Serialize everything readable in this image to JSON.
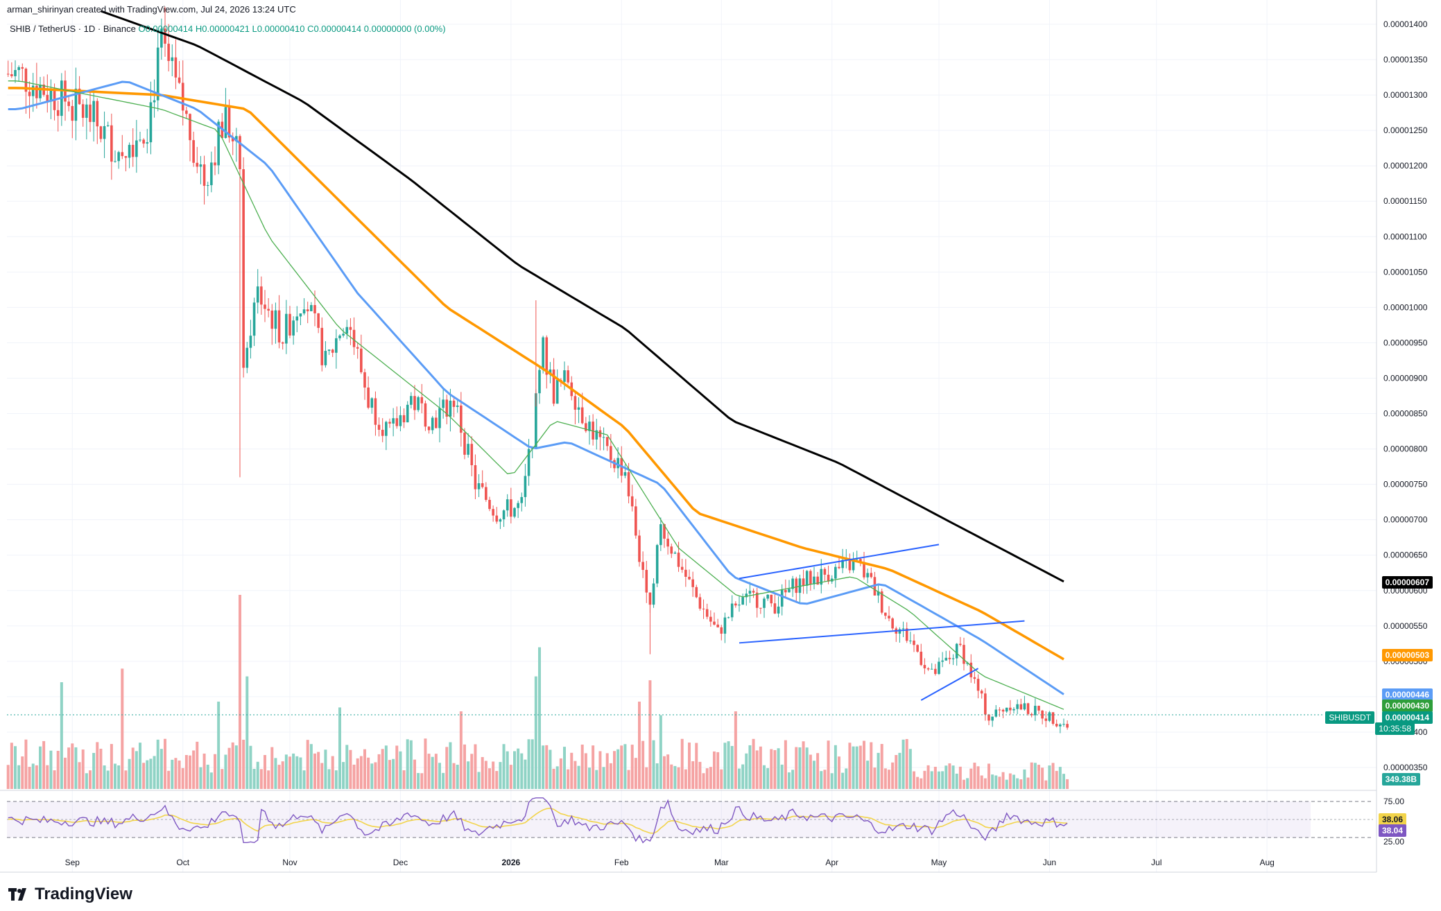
{
  "header": {
    "created_by": "arman_shirinyan created with TradingView.com, Jul 24, 2026 13:24 UTC",
    "symbol_line": "SHIB / TetherUS · 1D · Binance",
    "ohlc": "O0.00000414 H0.00000421 L0.00000410 C0.00000414 0.00000000 (0.00%)"
  },
  "brand": {
    "name": "TradingView",
    "icon": "tradingview-logo-icon"
  },
  "colors": {
    "up": "#26a69a",
    "down": "#ef5350",
    "vol_up": "#8fd3c5",
    "vol_down": "#f5a3a3",
    "ma200": "#000000",
    "ma100": "#ff9800",
    "ma50": "#5b9cf6",
    "ma20": "#4caf50",
    "rsi": "#7e57c2",
    "rsi_ma": "#f2d44a",
    "trend": "#2962ff"
  },
  "labels": {
    "ma200": "0.00000607",
    "ma100": "0.00000503",
    "ma50": "0.00000446",
    "ma20": "0.00000430",
    "symbol": "SHIBUSDT",
    "price": "0.00000414",
    "countdown": "10:35:58",
    "volume": "349.38B",
    "rsi": "38.04",
    "rsi_ma": "38.06",
    "rsi_upper": "75.00",
    "rsi_lower": "25.00"
  },
  "chart_data": {
    "type": "candlestick",
    "interval": "1D",
    "exchange": "Binance",
    "x_labels": [
      "Sep",
      "Oct",
      "Nov",
      "Dec",
      "2026",
      "Feb",
      "Mar",
      "Apr",
      "May",
      "Jun",
      "Jul",
      "Aug"
    ],
    "y_ticks": [
      "0.00001400",
      "0.00001350",
      "0.00001300",
      "0.00001250",
      "0.00001200",
      "0.00001150",
      "0.00001100",
      "0.00001050",
      "0.00001000",
      "0.00000950",
      "0.00000900",
      "0.00000850",
      "0.00000800",
      "0.00000750",
      "0.00000700",
      "0.00000650",
      "0.00000600",
      "0.00000550",
      "0.00000500",
      "0.00000450",
      "0.00000400",
      "0.00000350"
    ],
    "ylim": [
      3.4e-06,
      1.42e-05
    ],
    "price_path": [
      {
        "d": -20,
        "p": 1.33e-05
      },
      {
        "d": 0,
        "p": 1.27e-05
      },
      {
        "d": 8,
        "p": 1.22e-05
      },
      {
        "d": 16,
        "p": 1.26e-05
      },
      {
        "d": 20,
        "p": 1.37e-05
      },
      {
        "d": 26,
        "p": 1.28e-05
      },
      {
        "d": 32,
        "p": 1.18e-05
      },
      {
        "d": 38,
        "p": 1.27e-05
      },
      {
        "d": 42,
        "p": 1.2e-05
      },
      {
        "d": 43,
        "p": 9.3e-06
      },
      {
        "d": 47,
        "p": 1.02e-05
      },
      {
        "d": 54,
        "p": 9.6e-06
      },
      {
        "d": 60,
        "p": 1.02e-05
      },
      {
        "d": 66,
        "p": 9.2e-06
      },
      {
        "d": 72,
        "p": 9.9e-06
      },
      {
        "d": 78,
        "p": 8.7e-06
      },
      {
        "d": 84,
        "p": 8.2e-06
      },
      {
        "d": 90,
        "p": 8.7e-06
      },
      {
        "d": 96,
        "p": 8.4e-06
      },
      {
        "d": 102,
        "p": 8.7e-06
      },
      {
        "d": 108,
        "p": 7.5e-06
      },
      {
        "d": 114,
        "p": 7.1e-06
      },
      {
        "d": 121,
        "p": 7.2e-06
      },
      {
        "d": 124,
        "p": 8.2e-06
      },
      {
        "d": 127,
        "p": 9.4e-06
      },
      {
        "d": 130,
        "p": 8.8e-06
      },
      {
        "d": 134,
        "p": 9e-06
      },
      {
        "d": 138,
        "p": 8.5e-06
      },
      {
        "d": 144,
        "p": 8e-06
      },
      {
        "d": 150,
        "p": 7.7e-06
      },
      {
        "d": 154,
        "p": 6.5e-06
      },
      {
        "d": 157,
        "p": 5.9e-06
      },
      {
        "d": 160,
        "p": 6.9e-06
      },
      {
        "d": 166,
        "p": 6.3e-06
      },
      {
        "d": 170,
        "p": 5.9e-06
      },
      {
        "d": 176,
        "p": 5.4e-06
      },
      {
        "d": 181,
        "p": 5.8e-06
      },
      {
        "d": 186,
        "p": 5.9e-06
      },
      {
        "d": 192,
        "p": 5.8e-06
      },
      {
        "d": 198,
        "p": 6.1e-06
      },
      {
        "d": 204,
        "p": 6.2e-06
      },
      {
        "d": 210,
        "p": 6.3e-06
      },
      {
        "d": 215,
        "p": 6.4e-06
      },
      {
        "d": 219,
        "p": 6.1e-06
      },
      {
        "d": 224,
        "p": 5.6e-06
      },
      {
        "d": 230,
        "p": 5.3e-06
      },
      {
        "d": 236,
        "p": 4.8e-06
      },
      {
        "d": 240,
        "p": 5e-06
      },
      {
        "d": 244,
        "p": 5.2e-06
      },
      {
        "d": 248,
        "p": 4.7e-06
      },
      {
        "d": 252,
        "p": 4.2e-06
      },
      {
        "d": 258,
        "p": 4.4e-06
      },
      {
        "d": 264,
        "p": 4.3e-06
      },
      {
        "d": 270,
        "p": 4.2e-06
      },
      {
        "d": 274,
        "p": 4.1e-06
      }
    ],
    "moving_averages": [
      {
        "name": "MA200",
        "points": [
          {
            "d": -20,
            "p": 1.46e-05
          },
          {
            "d": 30,
            "p": 1.37e-05
          },
          {
            "d": 60,
            "p": 1.29e-05
          },
          {
            "d": 90,
            "p": 1.18e-05
          },
          {
            "d": 120,
            "p": 1.06e-05
          },
          {
            "d": 150,
            "p": 9.7e-06
          },
          {
            "d": 180,
            "p": 8.4e-06
          },
          {
            "d": 210,
            "p": 7.8e-06
          },
          {
            "d": 240,
            "p": 7e-06
          },
          {
            "d": 274,
            "p": 6.1e-06
          }
        ]
      },
      {
        "name": "MA100",
        "points": [
          {
            "d": -20,
            "p": 1.31e-05
          },
          {
            "d": 20,
            "p": 1.3e-05
          },
          {
            "d": 44,
            "p": 1.28e-05
          },
          {
            "d": 70,
            "p": 1.15e-05
          },
          {
            "d": 100,
            "p": 1e-05
          },
          {
            "d": 128,
            "p": 9.1e-06
          },
          {
            "d": 150,
            "p": 8.3e-06
          },
          {
            "d": 170,
            "p": 7.1e-06
          },
          {
            "d": 200,
            "p": 6.6e-06
          },
          {
            "d": 224,
            "p": 6.3e-06
          },
          {
            "d": 250,
            "p": 5.7e-06
          },
          {
            "d": 274,
            "p": 5e-06
          }
        ]
      },
      {
        "name": "MA50",
        "points": [
          {
            "d": -20,
            "p": 1.28e-05
          },
          {
            "d": 10,
            "p": 1.32e-05
          },
          {
            "d": 30,
            "p": 1.28e-05
          },
          {
            "d": 50,
            "p": 1.2e-05
          },
          {
            "d": 75,
            "p": 1.02e-05
          },
          {
            "d": 100,
            "p": 8.8e-06
          },
          {
            "d": 124,
            "p": 8e-06
          },
          {
            "d": 134,
            "p": 8.1e-06
          },
          {
            "d": 160,
            "p": 7.5e-06
          },
          {
            "d": 180,
            "p": 6.2e-06
          },
          {
            "d": 200,
            "p": 5.8e-06
          },
          {
            "d": 222,
            "p": 6.1e-06
          },
          {
            "d": 250,
            "p": 5.3e-06
          },
          {
            "d": 274,
            "p": 4.5e-06
          }
        ]
      },
      {
        "name": "MA20",
        "points": [
          {
            "d": -20,
            "p": 1.32e-05
          },
          {
            "d": 20,
            "p": 1.28e-05
          },
          {
            "d": 36,
            "p": 1.25e-05
          },
          {
            "d": 50,
            "p": 1.1e-05
          },
          {
            "d": 70,
            "p": 9.7e-06
          },
          {
            "d": 100,
            "p": 8.5e-06
          },
          {
            "d": 118,
            "p": 7.6e-06
          },
          {
            "d": 130,
            "p": 8.4e-06
          },
          {
            "d": 145,
            "p": 8.2e-06
          },
          {
            "d": 165,
            "p": 6.6e-06
          },
          {
            "d": 182,
            "p": 5.9e-06
          },
          {
            "d": 214,
            "p": 6.2e-06
          },
          {
            "d": 230,
            "p": 5.7e-06
          },
          {
            "d": 250,
            "p": 4.8e-06
          },
          {
            "d": 274,
            "p": 4.3e-06
          }
        ]
      }
    ],
    "trend_lines": [
      {
        "from": {
          "d": 182,
          "p": 6.17e-06
        },
        "to": {
          "d": 238,
          "p": 6.65e-06
        }
      },
      {
        "from": {
          "d": 182,
          "p": 5.26e-06
        },
        "to": {
          "d": 262,
          "p": 5.57e-06
        }
      },
      {
        "from": {
          "d": 233,
          "p": 4.45e-06
        },
        "to": {
          "d": 249,
          "p": 4.9e-06
        }
      }
    ],
    "rsi": {
      "ylim": [
        15,
        85
      ],
      "upper": 75,
      "lower": 25
    },
    "volume_spikes": [
      {
        "d": -8,
        "rel": 0.55
      },
      {
        "d": 9,
        "rel": 0.62
      },
      {
        "d": 36,
        "rel": 0.45
      },
      {
        "d": 42,
        "rel": 1.0
      },
      {
        "d": 44,
        "rel": 0.58
      },
      {
        "d": 70,
        "rel": 0.42
      },
      {
        "d": 104,
        "rel": 0.4
      },
      {
        "d": 125,
        "rel": 0.58
      },
      {
        "d": 126,
        "rel": 0.73
      },
      {
        "d": 154,
        "rel": 0.45
      },
      {
        "d": 157,
        "rel": 0.56
      },
      {
        "d": 160,
        "rel": 0.38
      },
      {
        "d": 181,
        "rel": 0.4
      }
    ]
  }
}
